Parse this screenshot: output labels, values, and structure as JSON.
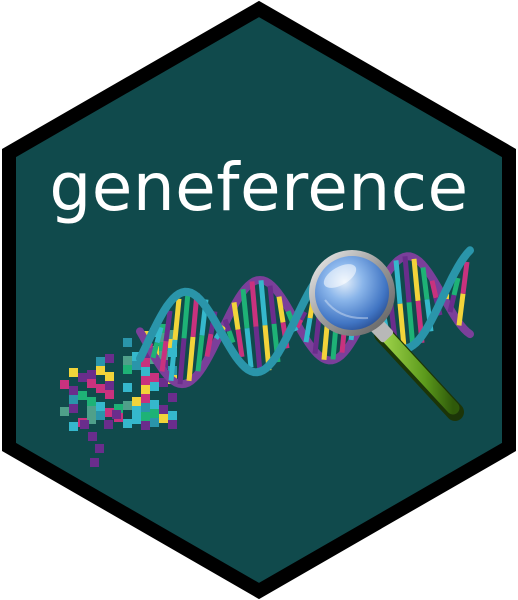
{
  "logo": {
    "title": "geneference",
    "colors": {
      "background": "#104a4c",
      "border": "#000000",
      "text": "#ffffff",
      "strand_purple": "#7b3f9a",
      "strand_teal": "#2a95aa",
      "base_yellow": "#f2d43a",
      "base_green": "#1eb276",
      "base_magenta": "#c8327e",
      "base_cyan": "#35b8cc",
      "base_purple": "#6a2d8c",
      "lens_blue": "#4d8fe0",
      "handle_green": "#6aa520"
    },
    "icons": [
      "dna-helix-icon",
      "magnifying-glass-icon"
    ]
  }
}
